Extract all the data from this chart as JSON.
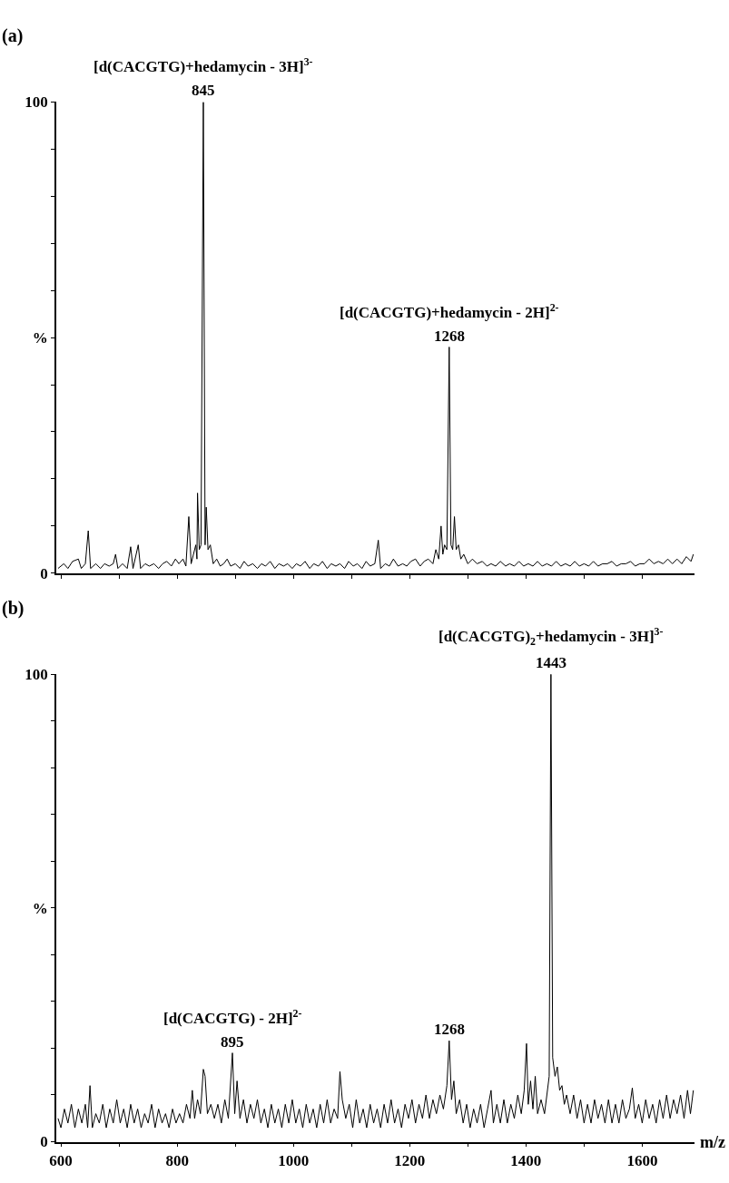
{
  "chart_data": [
    {
      "type": "line",
      "title": "(a)",
      "tick_labels": "y",
      "color": "#000000",
      "marker": "none",
      "line_style": "solid",
      "xlim": [
        592,
        1690
      ],
      "xticks": [
        {
          "value": 600,
          "label": null
        },
        {
          "value": 700,
          "label": null
        },
        {
          "value": 800,
          "label": null
        },
        {
          "value": 900,
          "label": null
        },
        {
          "value": 1000,
          "label": null
        },
        {
          "value": 1100,
          "label": null
        },
        {
          "value": 1200,
          "label": null
        },
        {
          "value": 1300,
          "label": null
        },
        {
          "value": 1400,
          "label": null
        },
        {
          "value": 1500,
          "label": null
        },
        {
          "value": 1600,
          "label": null
        }
      ],
      "ylim": [
        0,
        100
      ],
      "yticks": [
        0,
        {
          "value": 10,
          "label": null
        },
        {
          "value": 20,
          "label": null
        },
        {
          "value": 30,
          "label": null
        },
        {
          "value": 40,
          "label": null
        },
        {
          "value": 50,
          "label": "%"
        },
        {
          "value": 60,
          "label": null
        },
        {
          "value": 70,
          "label": null
        },
        {
          "value": 80,
          "label": null
        },
        {
          "value": 90,
          "label": null
        },
        100
      ],
      "annotations": [
        {
          "text": "845",
          "x": 845,
          "y": 100
        },
        {
          "text": "[d(CACGTG)+hedamycin - 3H]$^{3-}$",
          "x": 845,
          "y": 100
        },
        {
          "text": "1268",
          "x": 1268,
          "y": 48
        },
        {
          "text": "[d(CACGTG)+hedamycin - 2H]$^{2-}$",
          "x": 1268,
          "y": 48
        }
      ],
      "x": [
        595,
        605,
        612,
        620,
        630,
        635,
        642,
        647,
        651,
        660,
        668,
        675,
        683,
        690,
        694,
        698,
        706,
        714,
        720,
        724,
        733,
        737,
        745,
        752,
        760,
        768,
        775,
        782,
        790,
        797,
        803,
        810,
        815,
        820,
        824,
        828,
        832,
        834,
        835,
        838,
        841,
        845,
        848,
        850,
        853,
        857,
        862,
        868,
        874,
        880,
        886,
        892,
        900,
        908,
        915,
        922,
        930,
        938,
        945,
        952,
        960,
        968,
        975,
        983,
        990,
        998,
        1005,
        1012,
        1020,
        1028,
        1035,
        1043,
        1050,
        1058,
        1065,
        1073,
        1080,
        1088,
        1095,
        1103,
        1110,
        1118,
        1125,
        1132,
        1140,
        1146,
        1150,
        1158,
        1165,
        1172,
        1180,
        1188,
        1195,
        1202,
        1210,
        1218,
        1225,
        1232,
        1240,
        1245,
        1250,
        1254,
        1257,
        1260,
        1264,
        1268,
        1271,
        1274,
        1277,
        1280,
        1284,
        1288,
        1293,
        1300,
        1308,
        1316,
        1325,
        1333,
        1340,
        1348,
        1356,
        1365,
        1372,
        1380,
        1388,
        1396,
        1404,
        1412,
        1420,
        1428,
        1436,
        1444,
        1452,
        1460,
        1468,
        1476,
        1484,
        1492,
        1500,
        1508,
        1516,
        1524,
        1532,
        1540,
        1548,
        1556,
        1564,
        1572,
        1580,
        1588,
        1596,
        1604,
        1612,
        1620,
        1628,
        1636,
        1644,
        1652,
        1660,
        1668,
        1676,
        1684,
        1688
      ],
      "values": [
        1,
        2,
        1,
        2.5,
        3,
        1,
        2,
        9,
        1,
        2,
        1,
        2,
        1.5,
        2,
        4,
        1,
        2,
        1,
        5.6,
        1,
        6,
        1,
        2,
        1.5,
        2,
        1,
        2,
        2.5,
        1.5,
        3,
        2,
        3,
        1.5,
        12,
        2,
        4,
        6,
        3,
        17,
        5,
        6,
        100,
        6,
        14,
        5,
        6,
        2,
        3,
        1.5,
        2,
        3,
        1.5,
        2,
        1,
        2.5,
        1.5,
        2,
        1,
        2,
        1.5,
        2.5,
        1,
        2,
        1.5,
        2,
        1,
        2,
        1.5,
        2.5,
        1,
        2,
        1.5,
        2.5,
        1,
        2,
        1.5,
        2,
        1,
        2.5,
        1.5,
        2,
        1,
        2.5,
        1.5,
        2,
        7,
        1,
        2,
        1.5,
        3,
        1.5,
        2,
        1.5,
        2.5,
        3,
        1.5,
        2.5,
        3,
        2,
        5,
        3,
        10,
        4,
        6,
        5,
        48,
        6,
        5,
        12,
        5,
        6,
        3,
        4,
        2,
        3,
        2,
        2.5,
        1.5,
        2,
        1.5,
        2.5,
        1.5,
        2,
        1.5,
        2.5,
        1.5,
        2,
        1.5,
        2.5,
        1.5,
        2,
        1.5,
        2.5,
        1.5,
        2,
        1.5,
        2.5,
        1.5,
        2,
        1.5,
        2.5,
        1.5,
        2,
        2,
        2.5,
        1.5,
        2,
        2,
        2.5,
        1.5,
        2,
        2,
        3,
        2,
        2.5,
        2,
        3,
        2,
        3,
        2,
        3.5,
        2.5,
        4
      ]
    },
    {
      "type": "line",
      "title": "(b)",
      "xlabel": "m/z",
      "color": "#000000",
      "marker": "none",
      "line_style": "solid",
      "xlim": [
        592,
        1690
      ],
      "xticks": [
        600,
        {
          "value": 700,
          "label": null
        },
        800,
        {
          "value": 900,
          "label": null
        },
        1000,
        {
          "value": 1100,
          "label": null
        },
        1200,
        {
          "value": 1300,
          "label": null
        },
        1400,
        {
          "value": 1500,
          "label": null
        },
        1600
      ],
      "ylim": [
        0,
        100
      ],
      "yticks": [
        0,
        {
          "value": 10,
          "label": null
        },
        {
          "value": 20,
          "label": null
        },
        {
          "value": 30,
          "label": null
        },
        {
          "value": 40,
          "label": null
        },
        {
          "value": 50,
          "label": "%"
        },
        {
          "value": 60,
          "label": null
        },
        {
          "value": 70,
          "label": null
        },
        {
          "value": 80,
          "label": null
        },
        {
          "value": 90,
          "label": null
        },
        100
      ],
      "annotations": [
        {
          "text": "1443",
          "x": 1443,
          "y": 100
        },
        {
          "text": "[d(CACGTG)$_{2}$+hedamycin - 3H]$^{3-}$",
          "x": 1443,
          "y": 100
        },
        {
          "text": "895",
          "x": 895,
          "y": 19
        },
        {
          "text": "[d(CACGTG) - 2H]$^{2-}$",
          "x": 895,
          "y": 19
        },
        {
          "text": "1268",
          "x": 1268,
          "y": 21.6
        }
      ],
      "x": [
        595,
        600,
        606,
        612,
        618,
        624,
        630,
        636,
        642,
        646,
        650,
        654,
        660,
        666,
        672,
        678,
        684,
        690,
        696,
        702,
        708,
        714,
        720,
        726,
        732,
        738,
        744,
        750,
        756,
        762,
        768,
        774,
        780,
        786,
        792,
        798,
        804,
        810,
        816,
        822,
        826,
        830,
        835,
        840,
        845,
        848,
        852,
        858,
        864,
        870,
        876,
        882,
        888,
        895,
        899,
        903,
        908,
        914,
        920,
        926,
        932,
        938,
        944,
        950,
        956,
        962,
        968,
        974,
        980,
        986,
        992,
        998,
        1004,
        1010,
        1016,
        1022,
        1028,
        1034,
        1040,
        1046,
        1052,
        1058,
        1064,
        1070,
        1076,
        1080,
        1084,
        1090,
        1096,
        1102,
        1108,
        1114,
        1120,
        1126,
        1132,
        1138,
        1144,
        1150,
        1156,
        1162,
        1168,
        1174,
        1180,
        1186,
        1192,
        1198,
        1204,
        1210,
        1216,
        1222,
        1228,
        1234,
        1240,
        1246,
        1252,
        1258,
        1264,
        1268,
        1272,
        1276,
        1280,
        1286,
        1292,
        1298,
        1304,
        1310,
        1316,
        1322,
        1328,
        1334,
        1340,
        1344,
        1350,
        1356,
        1362,
        1368,
        1374,
        1380,
        1386,
        1392,
        1397,
        1401,
        1404,
        1408,
        1412,
        1416,
        1420,
        1426,
        1432,
        1436,
        1440,
        1443,
        1446,
        1450,
        1454,
        1458,
        1462,
        1466,
        1470,
        1476,
        1482,
        1488,
        1494,
        1500,
        1506,
        1512,
        1518,
        1524,
        1530,
        1536,
        1542,
        1548,
        1554,
        1560,
        1566,
        1572,
        1578,
        1583,
        1588,
        1594,
        1600,
        1606,
        1612,
        1618,
        1624,
        1630,
        1636,
        1642,
        1648,
        1654,
        1660,
        1666,
        1672,
        1678,
        1683,
        1688
      ],
      "values": [
        5,
        3,
        7,
        4,
        8,
        3,
        7,
        4,
        8,
        3,
        12,
        3,
        6,
        4,
        8,
        3,
        7,
        4,
        9,
        4,
        7,
        3,
        8,
        4,
        7,
        3,
        6,
        4,
        8,
        3,
        7,
        4,
        6,
        3,
        7,
        4,
        6,
        4,
        8,
        5,
        11,
        5,
        9,
        6,
        15.5,
        14,
        6,
        8,
        5,
        8,
        4,
        9,
        5,
        19,
        6,
        13,
        5,
        9,
        4,
        8,
        5,
        9,
        4,
        7,
        3,
        8,
        4,
        7,
        3,
        8,
        4,
        9,
        4,
        7,
        3,
        8,
        4,
        7,
        3,
        8,
        4,
        9,
        4,
        7,
        5,
        15,
        9,
        5,
        8,
        3,
        9,
        4,
        7,
        3,
        8,
        4,
        7,
        3,
        8,
        4,
        9,
        4,
        7,
        3,
        8,
        5,
        9,
        4,
        8,
        5,
        10,
        5,
        9,
        6,
        10,
        7,
        12,
        21.6,
        9,
        13,
        6,
        9,
        4,
        8,
        3,
        7,
        4,
        8,
        3,
        7,
        11,
        4,
        8,
        4,
        9,
        4,
        8,
        5,
        10,
        6,
        11,
        21,
        8,
        13,
        7,
        14,
        6,
        9,
        6,
        10,
        14,
        100,
        18,
        14,
        16,
        11,
        12,
        8,
        10,
        6,
        10,
        5,
        9,
        4,
        8,
        4,
        9,
        5,
        8,
        4,
        9,
        4,
        8,
        4,
        9,
        5,
        7,
        11.5,
        5,
        8,
        4,
        9,
        5,
        8,
        4,
        9,
        5,
        10,
        5,
        9,
        6,
        10,
        5,
        11,
        6,
        11
      ]
    }
  ]
}
